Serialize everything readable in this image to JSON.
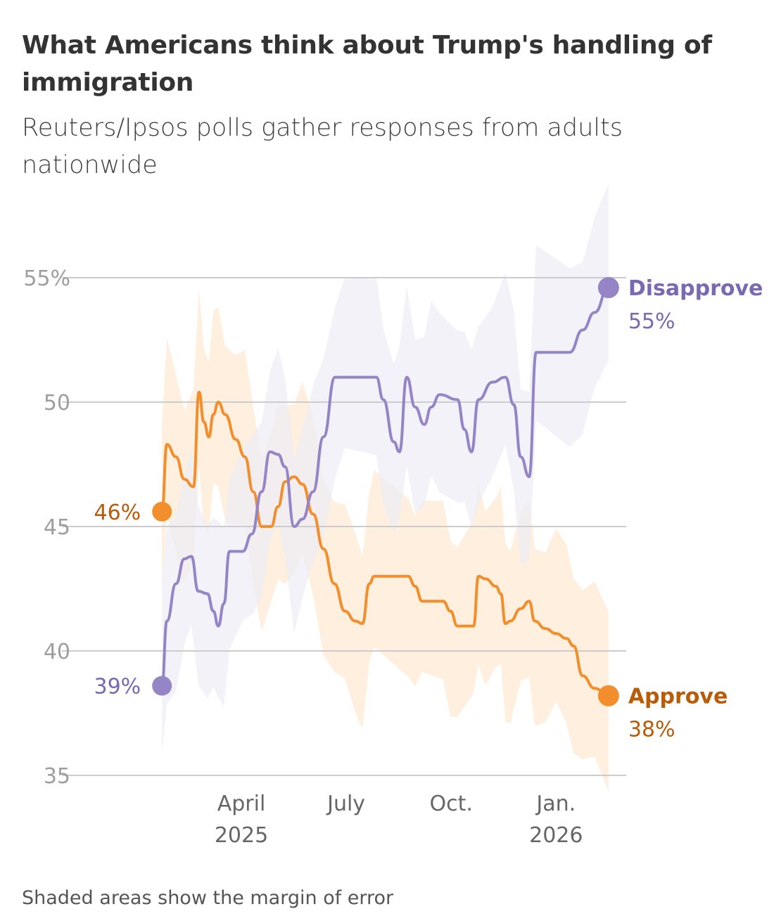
{
  "chart_data": {
    "type": "line",
    "title": "What Americans think about Trump's handling of immigration",
    "subtitle": "Reuters/Ipsos polls gather responses from adults nationwide",
    "note": "Shaded areas show the margin of error",
    "xlabel": "",
    "ylabel": "",
    "x_unit": "months since Jan 1, 2025",
    "xlim": [
      0.73,
      13.5
    ],
    "ylim": [
      35,
      55
    ],
    "y_ticks": [
      {
        "v": 35,
        "label": "35"
      },
      {
        "v": 40,
        "label": "40"
      },
      {
        "v": 45,
        "label": "45"
      },
      {
        "v": 50,
        "label": "50"
      },
      {
        "v": 55,
        "label": "55%"
      }
    ],
    "x_ticks": [
      {
        "m": 3,
        "label": "April",
        "sub": "2025"
      },
      {
        "m": 6,
        "label": "July",
        "sub": ""
      },
      {
        "m": 9,
        "label": "Oct.",
        "sub": ""
      },
      {
        "m": 12,
        "label": "Jan.",
        "sub": "2026"
      }
    ],
    "grid": true,
    "series": [
      {
        "name": "Approve",
        "color": "#f28e2b",
        "label_color": "#b85c0a",
        "band_color": "#fde9d3",
        "margin_of_error": 3.5,
        "start_label": "46%",
        "end_label": "38%",
        "points": [
          [
            0.73,
            45.6
          ],
          [
            0.87,
            48.3
          ],
          [
            1.13,
            47.8
          ],
          [
            1.37,
            46.9
          ],
          [
            1.63,
            46.6
          ],
          [
            1.79,
            50.4
          ],
          [
            1.93,
            49.2
          ],
          [
            2.07,
            48.6
          ],
          [
            2.2,
            49.5
          ],
          [
            2.34,
            50.0
          ],
          [
            2.54,
            49.5
          ],
          [
            2.84,
            48.5
          ],
          [
            3.1,
            47.8
          ],
          [
            3.34,
            46.4
          ],
          [
            3.58,
            45.0
          ],
          [
            3.85,
            45.0
          ],
          [
            4.05,
            45.8
          ],
          [
            4.25,
            46.8
          ],
          [
            4.51,
            47.0
          ],
          [
            4.75,
            46.7
          ],
          [
            5.05,
            45.5
          ],
          [
            5.35,
            44.1
          ],
          [
            5.66,
            42.7
          ],
          [
            5.96,
            41.6
          ],
          [
            6.26,
            41.2
          ],
          [
            6.46,
            41.1
          ],
          [
            6.66,
            42.7
          ],
          [
            6.8,
            43.0
          ],
          [
            7.77,
            43.0
          ],
          [
            7.97,
            42.6
          ],
          [
            8.17,
            42.0
          ],
          [
            8.77,
            42.0
          ],
          [
            8.98,
            41.6
          ],
          [
            9.18,
            41.0
          ],
          [
            9.64,
            41.0
          ],
          [
            9.78,
            43.0
          ],
          [
            9.98,
            42.9
          ],
          [
            10.28,
            42.6
          ],
          [
            10.42,
            42.3
          ],
          [
            10.55,
            41.1
          ],
          [
            10.69,
            41.2
          ],
          [
            10.99,
            41.7
          ],
          [
            11.23,
            42.0
          ],
          [
            11.39,
            41.2
          ],
          [
            11.69,
            40.9
          ],
          [
            12.0,
            40.7
          ],
          [
            12.3,
            40.5
          ],
          [
            12.5,
            40.2
          ],
          [
            12.76,
            39.0
          ],
          [
            13.1,
            38.5
          ],
          [
            13.5,
            38.2
          ]
        ]
      },
      {
        "name": "Disapprove",
        "color": "#9585c6",
        "label_color": "#7a68b3",
        "band_color": "#eeedf6",
        "margin_of_error": 3.5,
        "start_label": "39%",
        "end_label": "55%",
        "points": [
          [
            0.73,
            38.6
          ],
          [
            0.87,
            41.2
          ],
          [
            1.13,
            42.7
          ],
          [
            1.37,
            43.7
          ],
          [
            1.57,
            43.8
          ],
          [
            1.77,
            42.4
          ],
          [
            2.03,
            42.3
          ],
          [
            2.2,
            41.6
          ],
          [
            2.34,
            41.0
          ],
          [
            2.5,
            41.9
          ],
          [
            2.66,
            44.0
          ],
          [
            3.04,
            44.0
          ],
          [
            3.3,
            44.7
          ],
          [
            3.58,
            46.4
          ],
          [
            3.82,
            48.0
          ],
          [
            4.05,
            47.9
          ],
          [
            4.25,
            47.4
          ],
          [
            4.51,
            45.0
          ],
          [
            4.75,
            45.3
          ],
          [
            5.05,
            46.4
          ],
          [
            5.35,
            48.6
          ],
          [
            5.68,
            51.0
          ],
          [
            5.96,
            51.0
          ],
          [
            6.86,
            51.0
          ],
          [
            7.06,
            50.1
          ],
          [
            7.36,
            48.4
          ],
          [
            7.52,
            48.0
          ],
          [
            7.73,
            51.0
          ],
          [
            7.97,
            49.8
          ],
          [
            8.23,
            49.1
          ],
          [
            8.43,
            49.8
          ],
          [
            8.67,
            50.3
          ],
          [
            9.18,
            50.1
          ],
          [
            9.38,
            48.9
          ],
          [
            9.58,
            48.0
          ],
          [
            9.78,
            50.1
          ],
          [
            10.18,
            50.8
          ],
          [
            10.55,
            51.0
          ],
          [
            10.79,
            49.9
          ],
          [
            10.99,
            47.8
          ],
          [
            11.23,
            47.0
          ],
          [
            11.43,
            52.0
          ],
          [
            12.39,
            52.0
          ],
          [
            12.76,
            52.9
          ],
          [
            13.1,
            53.6
          ],
          [
            13.5,
            54.6
          ]
        ]
      }
    ]
  }
}
